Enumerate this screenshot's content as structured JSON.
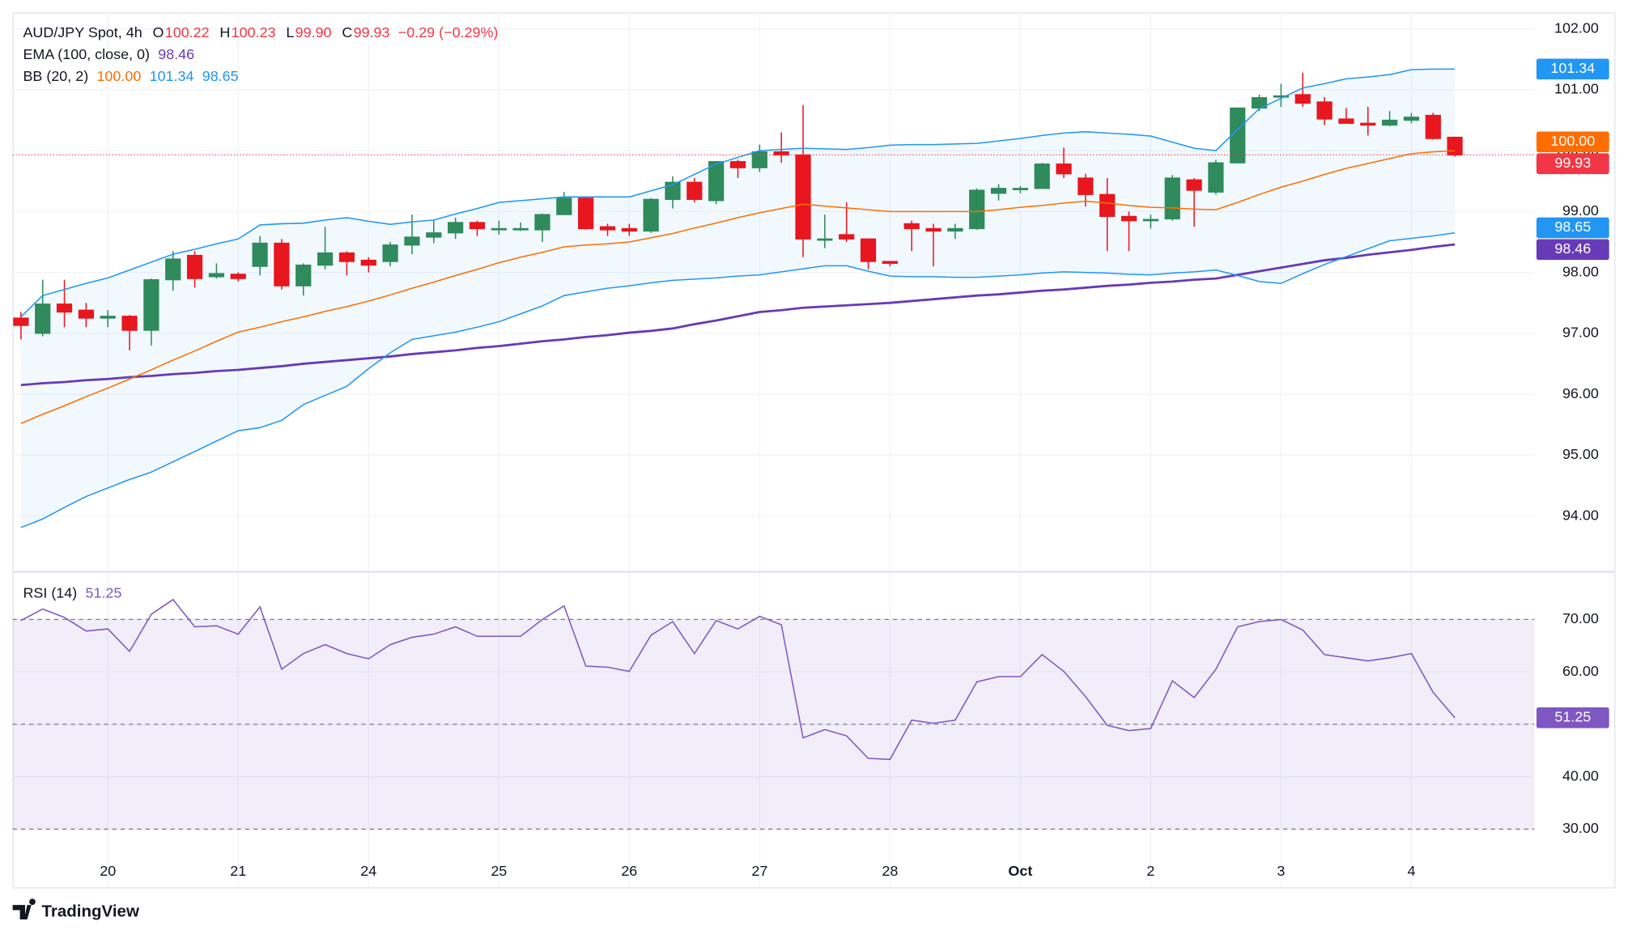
{
  "chart_data": [
    {
      "type": "candlestick",
      "title": "AUD/JPY Spot, 4h",
      "ohlc": [
        {
          "label": "O",
          "value": "100.22"
        },
        {
          "label": "H",
          "value": "100.23"
        },
        {
          "label": "L",
          "value": "99.90"
        },
        {
          "label": "C",
          "value": "99.93"
        }
      ],
      "change": "−0.29 (−0.29%)",
      "change_color": "#f23645",
      "up_color": "#2f8a5c",
      "down_color": "#e8161f",
      "ylim": [
        93.1,
        102.27
      ],
      "yticks": [
        {
          "value": 94,
          "label": "94.00"
        },
        {
          "value": 95,
          "label": "95.00"
        },
        {
          "value": 96,
          "label": "96.00"
        },
        {
          "value": 97,
          "label": "97.00"
        },
        {
          "value": 98,
          "label": "98.00"
        },
        {
          "value": 99,
          "label": "99.00"
        },
        {
          "value": 100,
          "label": "100.00"
        },
        {
          "value": 101,
          "label": "101.00"
        },
        {
          "value": 102,
          "label": "102.00"
        }
      ],
      "grid": true,
      "open": [
        97.25,
        97.0,
        97.48,
        97.38,
        97.25,
        97.28,
        97.05,
        97.88,
        98.28,
        97.93,
        97.97,
        98.1,
        98.48,
        97.78,
        98.12,
        98.32,
        98.2,
        98.18,
        98.45,
        98.58,
        98.65,
        98.82,
        98.72,
        98.72,
        98.7,
        98.95,
        99.22,
        98.75,
        98.72,
        98.68,
        99.2,
        99.48,
        99.18,
        99.82,
        99.72,
        99.98,
        99.93,
        98.55,
        98.62,
        98.55,
        98.18,
        98.8,
        98.72,
        98.68,
        98.72,
        99.3,
        99.38,
        99.38,
        99.78,
        99.55,
        99.28,
        98.92,
        98.85,
        98.88,
        99.52,
        99.32,
        99.8,
        100.7,
        100.88,
        100.92,
        100.8,
        100.52,
        100.45,
        100.42,
        100.5,
        100.58,
        100.22
      ],
      "high": [
        97.35,
        97.88,
        97.88,
        97.5,
        97.38,
        97.3,
        97.9,
        98.35,
        98.35,
        98.15,
        98.0,
        98.6,
        98.55,
        98.15,
        98.75,
        98.35,
        98.25,
        98.5,
        98.95,
        98.85,
        98.9,
        98.85,
        98.85,
        98.82,
        98.97,
        99.32,
        99.25,
        98.8,
        98.8,
        99.22,
        99.58,
        99.55,
        99.83,
        99.85,
        100.1,
        100.3,
        100.75,
        98.95,
        99.15,
        98.55,
        98.18,
        98.85,
        98.8,
        98.8,
        99.38,
        99.45,
        99.42,
        99.8,
        100.05,
        99.62,
        99.55,
        99.0,
        98.95,
        99.6,
        99.55,
        99.85,
        100.7,
        100.92,
        101.1,
        101.28,
        100.88,
        100.7,
        100.72,
        100.65,
        100.62,
        100.62,
        100.23
      ],
      "low": [
        96.9,
        96.95,
        97.1,
        97.1,
        97.1,
        96.72,
        96.8,
        97.7,
        97.75,
        97.9,
        97.85,
        97.95,
        97.72,
        97.62,
        98.05,
        97.95,
        98.0,
        98.1,
        98.3,
        98.48,
        98.55,
        98.6,
        98.62,
        98.68,
        98.5,
        98.95,
        98.7,
        98.6,
        98.6,
        98.65,
        99.05,
        99.15,
        99.12,
        99.55,
        99.65,
        99.8,
        98.25,
        98.4,
        98.5,
        98.05,
        98.1,
        98.35,
        98.1,
        98.55,
        98.7,
        99.18,
        99.3,
        99.38,
        99.55,
        99.08,
        98.35,
        98.35,
        98.72,
        98.85,
        98.75,
        99.28,
        99.8,
        100.65,
        100.72,
        100.72,
        100.42,
        100.45,
        100.25,
        100.4,
        100.45,
        100.18,
        99.9
      ],
      "close": [
        97.13,
        97.48,
        97.35,
        97.25,
        97.28,
        97.05,
        97.88,
        98.22,
        97.9,
        97.98,
        97.9,
        98.48,
        97.78,
        98.12,
        98.32,
        98.18,
        98.12,
        98.45,
        98.58,
        98.65,
        98.82,
        98.72,
        98.72,
        98.72,
        98.95,
        99.22,
        98.72,
        98.7,
        98.68,
        99.2,
        99.48,
        99.2,
        99.82,
        99.72,
        99.98,
        99.93,
        98.55,
        98.55,
        98.55,
        98.18,
        98.15,
        98.72,
        98.68,
        98.72,
        99.35,
        99.38,
        99.38,
        99.78,
        99.62,
        99.28,
        98.92,
        98.85,
        98.87,
        99.55,
        99.35,
        99.8,
        100.7,
        100.87,
        100.9,
        100.78,
        100.52,
        100.45,
        100.42,
        100.5,
        100.55,
        100.2,
        99.93
      ],
      "indicators": [
        {
          "name": "EMA (100, close, 0)",
          "lines": [
            {
              "color": "#673ab7",
              "width": 2.2,
              "value_label": "98.46",
              "values": [
                96.15,
                96.18,
                96.2,
                96.23,
                96.25,
                96.28,
                96.3,
                96.33,
                96.35,
                96.38,
                96.4,
                96.43,
                96.46,
                96.5,
                96.53,
                96.56,
                96.59,
                96.62,
                96.66,
                96.69,
                96.72,
                96.76,
                96.79,
                96.83,
                96.87,
                96.9,
                96.94,
                96.97,
                97.01,
                97.04,
                97.08,
                97.15,
                97.21,
                97.28,
                97.35,
                97.38,
                97.42,
                97.44,
                97.46,
                97.48,
                97.5,
                97.53,
                97.56,
                97.59,
                97.62,
                97.64,
                97.67,
                97.7,
                97.72,
                97.75,
                97.78,
                97.8,
                97.83,
                97.85,
                97.88,
                97.9,
                97.96,
                98.02,
                98.08,
                98.14,
                98.2,
                98.24,
                98.29,
                98.33,
                98.37,
                98.42,
                98.46
              ]
            }
          ]
        },
        {
          "name": "BB (20, 2)",
          "fill": "rgba(33,150,243,0.06)",
          "lines": [
            {
              "color": "#ff6d00",
              "width": 1.2,
              "value_label": "100.00",
              "values": [
                95.52,
                95.67,
                95.81,
                95.96,
                96.1,
                96.25,
                96.4,
                96.56,
                96.71,
                96.87,
                97.02,
                97.1,
                97.19,
                97.27,
                97.36,
                97.44,
                97.53,
                97.63,
                97.74,
                97.84,
                97.95,
                98.05,
                98.16,
                98.25,
                98.33,
                98.42,
                98.45,
                98.47,
                98.5,
                98.57,
                98.64,
                98.73,
                98.81,
                98.9,
                98.98,
                99.05,
                99.12,
                99.09,
                99.06,
                99.03,
                99.0,
                99.0,
                99.0,
                99.0,
                99.0,
                99.03,
                99.07,
                99.1,
                99.14,
                99.17,
                99.14,
                99.1,
                99.07,
                99.06,
                99.04,
                99.03,
                99.15,
                99.28,
                99.4,
                99.5,
                99.61,
                99.71,
                99.79,
                99.87,
                99.95,
                99.98,
                100.0
              ]
            },
            {
              "color": "#2196f3",
              "width": 1.2,
              "value_label": "101.34",
              "values": [
                97.27,
                97.62,
                97.72,
                97.82,
                97.91,
                98.04,
                98.17,
                98.3,
                98.38,
                98.47,
                98.55,
                98.78,
                98.8,
                98.81,
                98.86,
                98.9,
                98.84,
                98.79,
                98.83,
                98.86,
                98.96,
                99.05,
                99.15,
                99.18,
                99.21,
                99.24,
                99.24,
                99.24,
                99.24,
                99.34,
                99.44,
                99.61,
                99.78,
                99.89,
                100.0,
                100.02,
                100.04,
                100.03,
                100.02,
                100.05,
                100.09,
                100.1,
                100.1,
                100.11,
                100.12,
                100.16,
                100.2,
                100.25,
                100.29,
                100.31,
                100.29,
                100.27,
                100.24,
                100.14,
                100.04,
                100.0,
                100.35,
                100.69,
                100.86,
                101.03,
                101.1,
                101.18,
                101.21,
                101.25,
                101.33,
                101.34,
                101.34
              ]
            },
            {
              "color": "#2196f3",
              "width": 1.2,
              "value_label": "98.65",
              "values": [
                93.81,
                93.95,
                94.14,
                94.32,
                94.46,
                94.6,
                94.72,
                94.89,
                95.06,
                95.23,
                95.4,
                95.45,
                95.57,
                95.83,
                95.98,
                96.13,
                96.42,
                96.68,
                96.9,
                96.96,
                97.02,
                97.1,
                97.19,
                97.32,
                97.45,
                97.62,
                97.68,
                97.74,
                97.78,
                97.83,
                97.87,
                97.89,
                97.91,
                97.94,
                97.96,
                98.01,
                98.06,
                98.11,
                98.11,
                98.02,
                97.94,
                97.93,
                97.93,
                97.92,
                97.92,
                97.94,
                97.96,
                97.99,
                98.01,
                98.0,
                97.99,
                97.97,
                97.96,
                97.99,
                98.01,
                98.04,
                97.95,
                97.85,
                97.82,
                97.98,
                98.13,
                98.26,
                98.39,
                98.52,
                98.56,
                98.6,
                98.65
              ]
            }
          ]
        }
      ]
    },
    {
      "type": "line",
      "title": "RSI (14)",
      "value_label": "51.25",
      "color": "#7e57c2",
      "categories": [
        null,
        null,
        null,
        null,
        "20",
        null,
        null,
        null,
        null,
        null,
        "21",
        null,
        null,
        null,
        null,
        null,
        "24",
        null,
        null,
        null,
        null,
        null,
        "25",
        null,
        null,
        null,
        null,
        null,
        "26",
        null,
        null,
        null,
        null,
        null,
        "27",
        null,
        null,
        null,
        null,
        null,
        "28",
        null,
        null,
        null,
        null,
        null,
        "Oct",
        null,
        null,
        null,
        null,
        null,
        "2",
        null,
        null,
        null,
        null,
        null,
        "3",
        null,
        null,
        null,
        null,
        null,
        "4",
        null,
        null
      ],
      "values": [
        69.8,
        72.0,
        70.4,
        67.8,
        68.2,
        63.9,
        71.0,
        73.8,
        68.6,
        68.8,
        67.2,
        72.4,
        60.5,
        63.5,
        65.2,
        63.5,
        62.5,
        65.2,
        66.6,
        67.2,
        68.6,
        66.8,
        66.8,
        66.8,
        70.0,
        72.6,
        61.1,
        60.9,
        60.1,
        67.0,
        69.6,
        63.5,
        69.8,
        68.2,
        70.6,
        69.0,
        47.4,
        49.0,
        47.8,
        43.5,
        43.3,
        50.8,
        50.2,
        50.8,
        58.1,
        59.1,
        59.1,
        63.3,
        60.1,
        55.3,
        49.8,
        48.8,
        49.2,
        58.3,
        55.1,
        60.5,
        68.6,
        69.6,
        70.0,
        68.0,
        63.3,
        62.7,
        62.1,
        62.7,
        63.5,
        56.1,
        51.25
      ],
      "ylim": [
        18.9,
        78.9
      ],
      "yticks": [
        {
          "value": 30,
          "label": "30.00"
        },
        {
          "value": 40,
          "label": "40.00"
        },
        {
          "value": 50,
          "label": "50.00"
        },
        {
          "value": 60,
          "label": "60.00"
        },
        {
          "value": 70,
          "label": "70.00"
        }
      ],
      "levels": [
        70,
        50,
        30
      ],
      "band_fill": "rgba(126,87,194,0.1)"
    }
  ],
  "footer": "TradingView"
}
